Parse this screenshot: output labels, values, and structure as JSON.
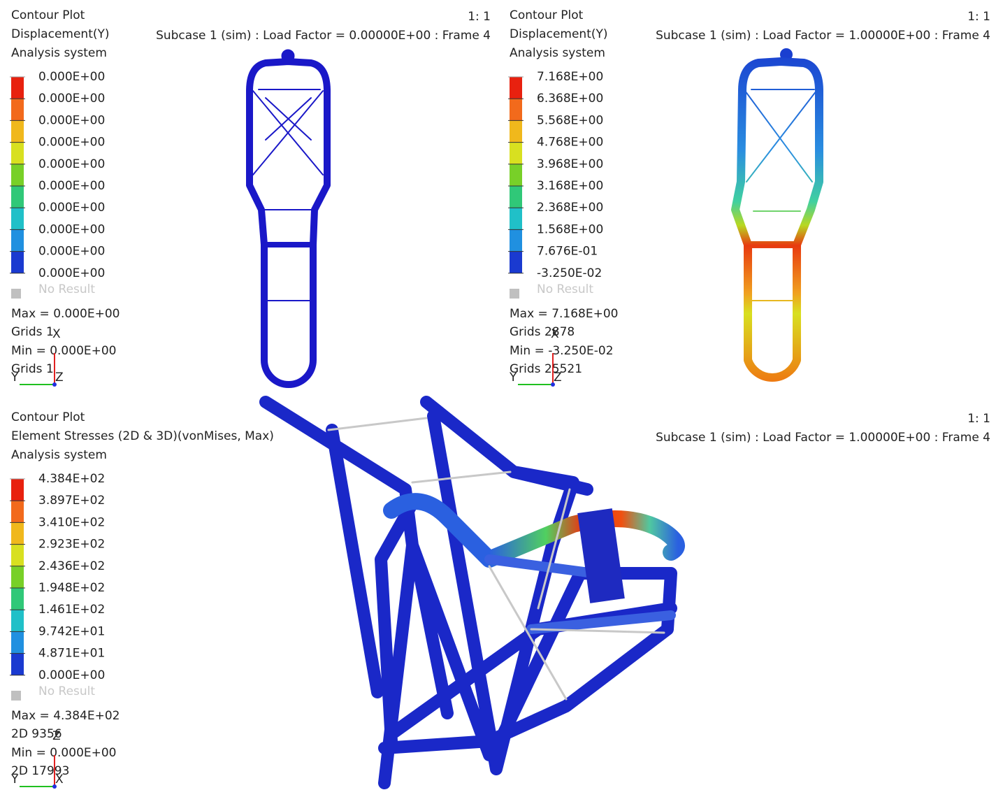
{
  "viewports": [
    {
      "title": "Contour Plot",
      "result": "Displacement(Y)",
      "system": "Analysis system",
      "scale": "1: 1",
      "subcase": "Subcase 1 (sim) : Load Factor =  0.00000E+00 : Frame 4",
      "legend": [
        "0.000E+00",
        "0.000E+00",
        "0.000E+00",
        "0.000E+00",
        "0.000E+00",
        "0.000E+00",
        "0.000E+00",
        "0.000E+00",
        "0.000E+00",
        "0.000E+00"
      ],
      "no_result": "No Result",
      "max": "Max =  0.000E+00",
      "max_at": "Grids 1",
      "min": "Min =  0.000E+00",
      "min_at": "Grids 1",
      "axes": [
        "X",
        "Y",
        "Z"
      ]
    },
    {
      "title": "Contour Plot",
      "result": "Displacement(Y)",
      "system": "Analysis system",
      "scale": "1: 1",
      "subcase": "Subcase 1 (sim) : Load Factor =  1.00000E+00 : Frame 4",
      "legend": [
        "7.168E+00",
        "6.368E+00",
        "5.568E+00",
        "4.768E+00",
        "3.968E+00",
        "3.168E+00",
        "2.368E+00",
        "1.568E+00",
        "7.676E-01",
        "-3.250E-02"
      ],
      "no_result": "No Result",
      "max": "Max =  7.168E+00",
      "max_at": "Grids 2878",
      "min": "Min = -3.250E-02",
      "min_at": "Grids 25521",
      "axes": [
        "X",
        "Y",
        "Z"
      ]
    },
    {
      "title": "Contour Plot",
      "result": "Element Stresses (2D & 3D)(vonMises, Max)",
      "system": "Analysis system",
      "scale": "1: 1",
      "subcase": "Subcase 1 (sim) : Load Factor =  1.00000E+00 : Frame 4",
      "legend": [
        "4.384E+02",
        "3.897E+02",
        "3.410E+02",
        "2.923E+02",
        "2.436E+02",
        "1.948E+02",
        "1.461E+02",
        "9.742E+01",
        "4.871E+01",
        "0.000E+00"
      ],
      "no_result": "No Result",
      "max": "Max =  4.384E+02",
      "max_at": "2D 9356",
      "min": "Min =  0.000E+00",
      "min_at": "2D 17993",
      "axes": [
        "Z",
        "Y",
        "X"
      ]
    }
  ]
}
